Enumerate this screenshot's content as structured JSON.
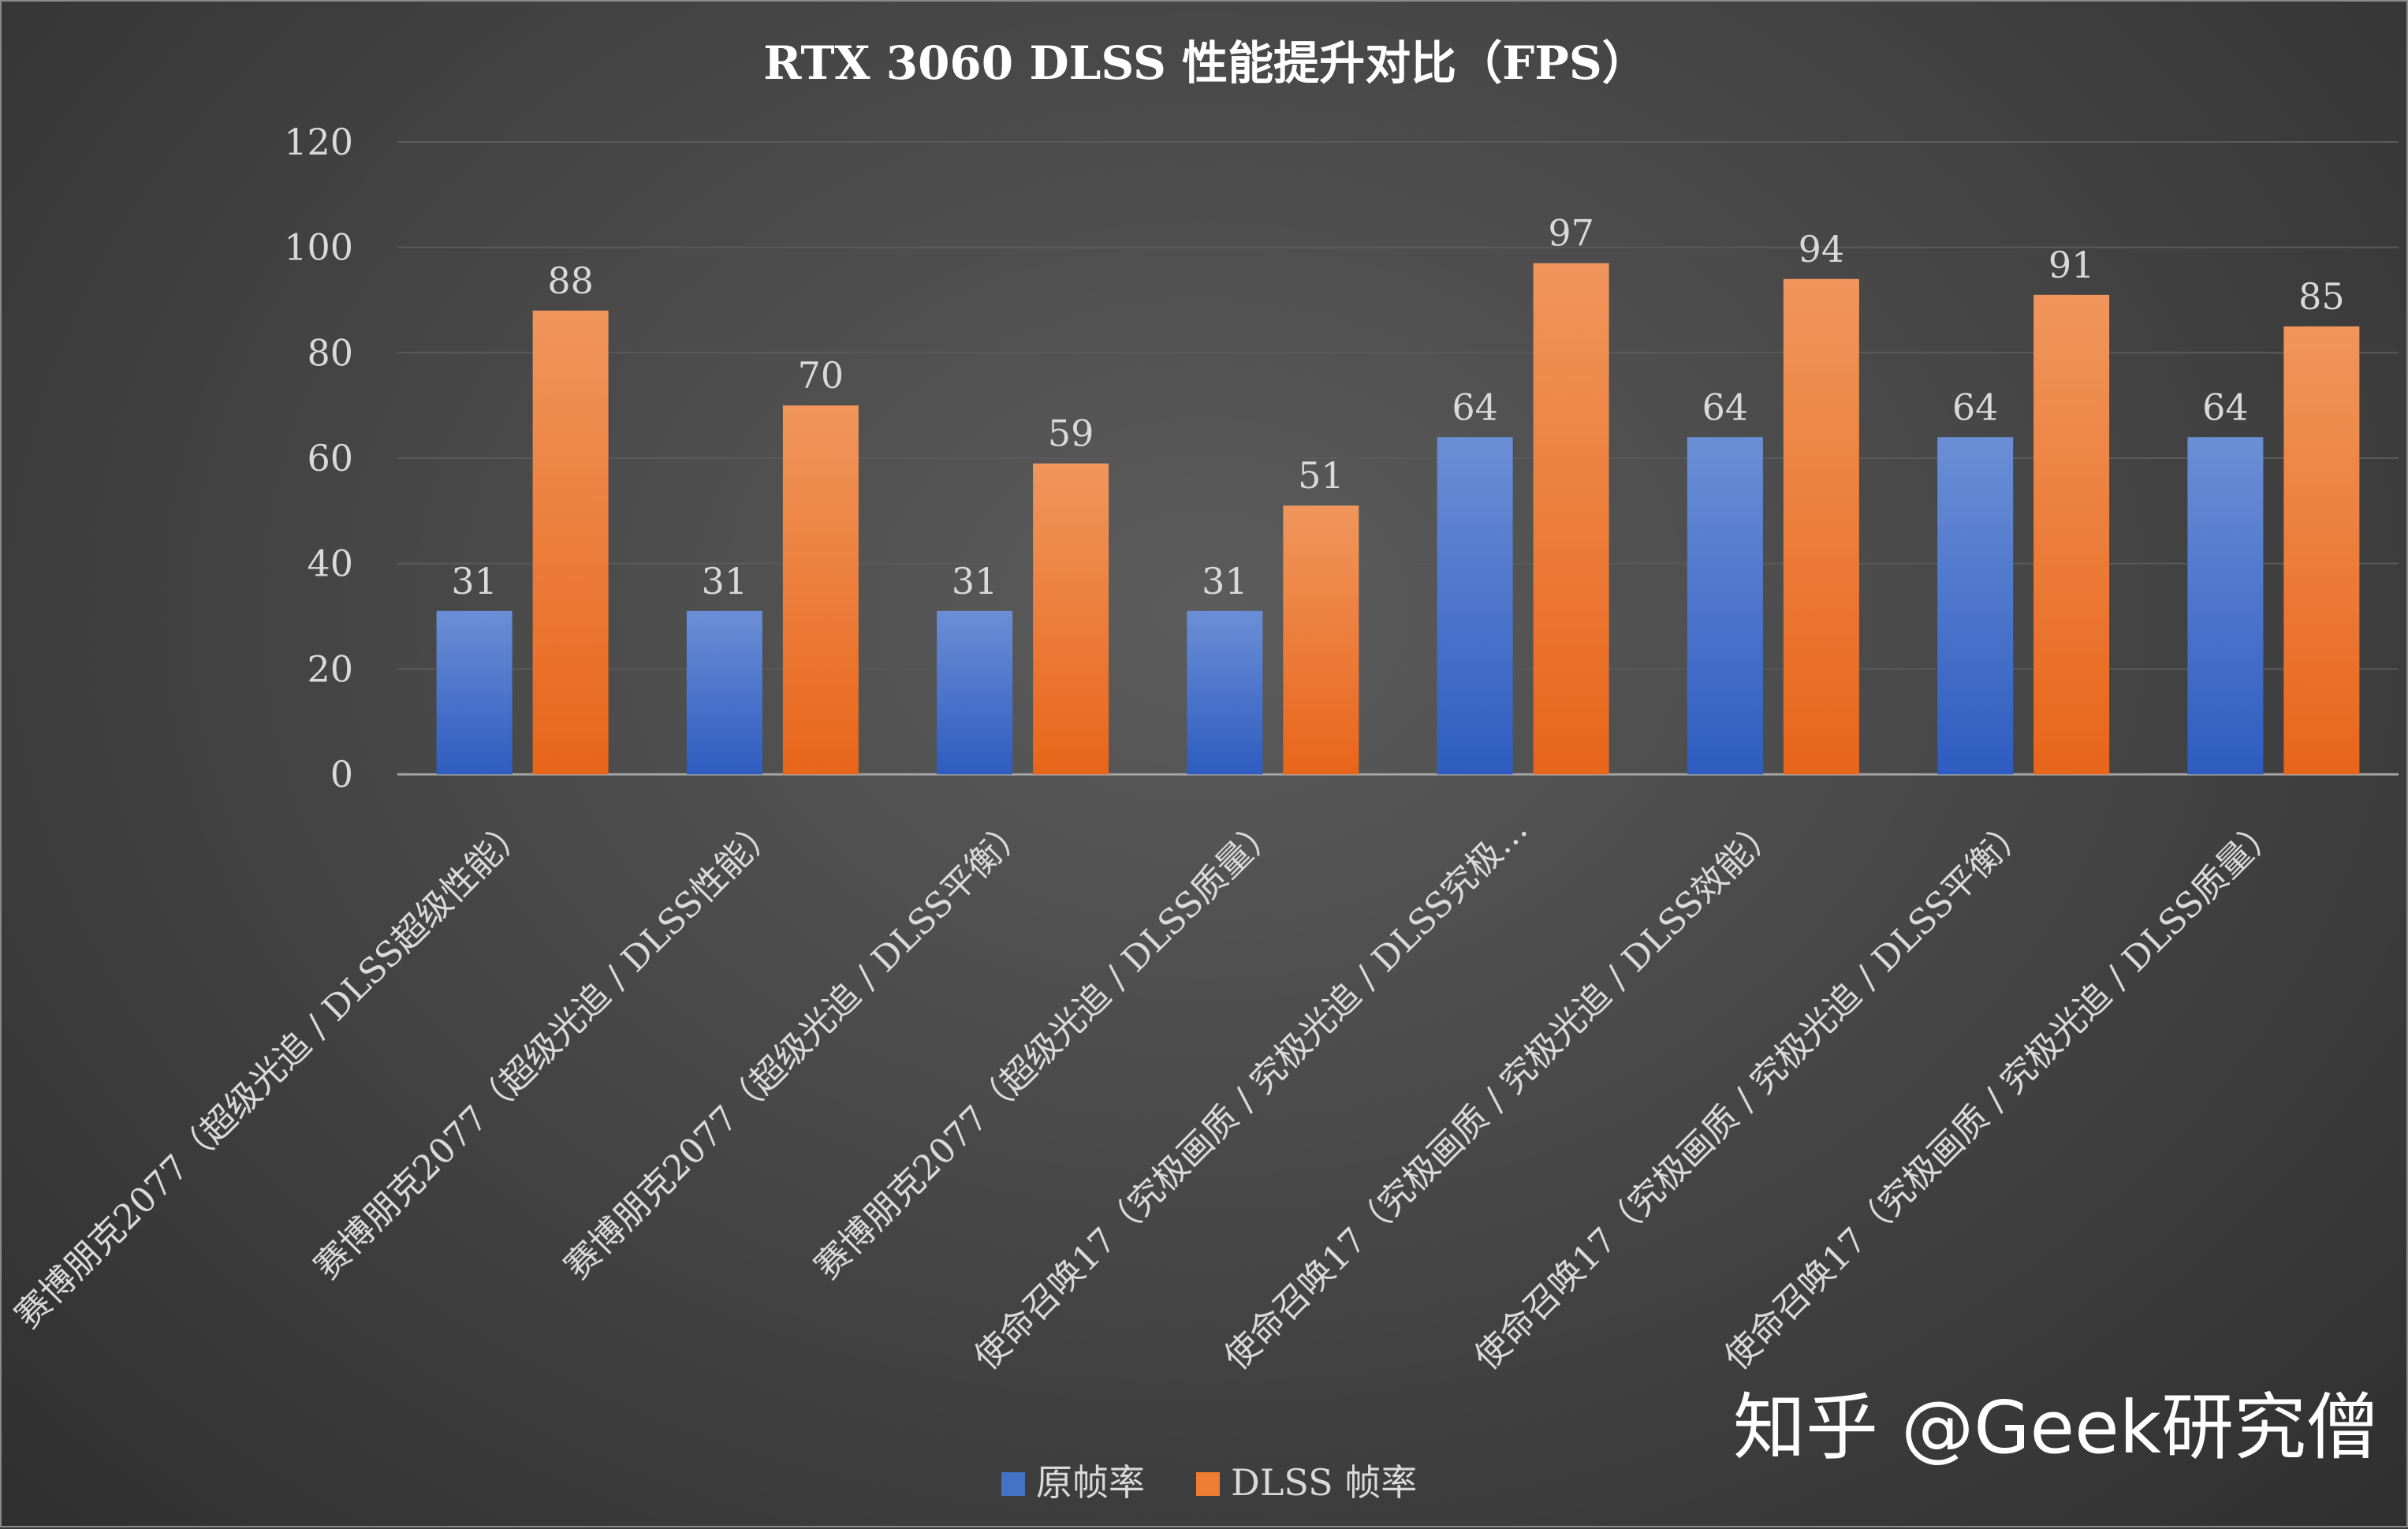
{
  "chart_data": {
    "type": "bar",
    "title": "RTX 3060 DLSS 性能提升对比（FPS）",
    "categories": [
      "赛博朋克2077（超级光追 / DLSS超级性能）",
      "赛博朋克2077（超级光追 / DLSS性能）",
      "赛博朋克2077（超级光追 / DLSS平衡）",
      "赛博朋克2077（超级光追 / DLSS质量）",
      "使命召唤17（究极画质 / 究极光追 / DLSS究极…",
      "使命召唤17（究极画质 / 究极光追 / DLSS效能）",
      "使命召唤17（究极画质 / 究极光追 / DLSS平衡）",
      "使命召唤17（究极画质 / 究极光追 / DLSS质量）"
    ],
    "series": [
      {
        "name": "原帧率",
        "values": [
          31,
          31,
          31,
          31,
          64,
          64,
          64,
          64
        ],
        "color": "#4472c4"
      },
      {
        "name": "DLSS 帧率",
        "values": [
          88,
          70,
          59,
          51,
          97,
          94,
          91,
          85
        ],
        "color": "#ed7d31"
      }
    ],
    "yticks": [
      0,
      20,
      40,
      60,
      80,
      100,
      120
    ],
    "ylim": [
      0,
      120
    ],
    "xlabel": "",
    "ylabel": "",
    "grid": true,
    "legend_position": "bottom"
  },
  "watermark": "知乎 @Geek研究僧"
}
